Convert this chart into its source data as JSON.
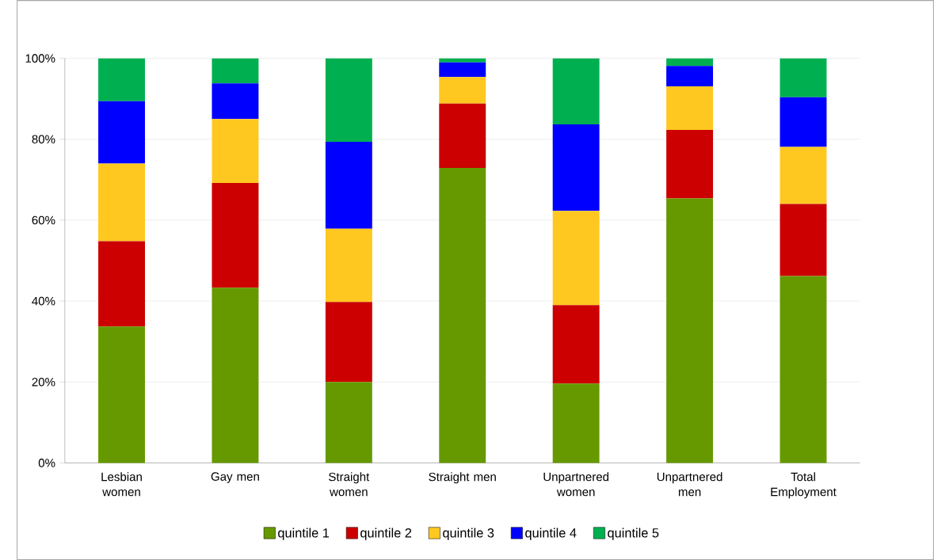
{
  "chart_data": {
    "type": "bar",
    "stacked": true,
    "categories": [
      "Lesbian women",
      "Gay men",
      "Straight women",
      "Straight men",
      "Unpartnered women",
      "Unpartnered men",
      "Total Employment"
    ],
    "series": [
      {
        "name": "quintile 1",
        "color": "#669900",
        "values": [
          33.7,
          43.3,
          20.0,
          72.9,
          19.6,
          65.4,
          46.2
        ]
      },
      {
        "name": "quintile 2",
        "color": "#cc0000",
        "values": [
          21.1,
          25.9,
          19.8,
          15.9,
          19.4,
          16.9,
          17.8
        ]
      },
      {
        "name": "quintile 3",
        "color": "#ffc820",
        "values": [
          19.2,
          15.8,
          18.1,
          6.6,
          23.3,
          10.8,
          14.1
        ]
      },
      {
        "name": "quintile 4",
        "color": "#0000ff",
        "values": [
          15.4,
          8.8,
          21.5,
          3.6,
          21.4,
          5.0,
          12.3
        ]
      },
      {
        "name": "quintile 5",
        "color": "#00b050",
        "values": [
          10.6,
          6.2,
          20.6,
          1.0,
          16.3,
          1.9,
          9.6
        ]
      }
    ],
    "ylim": [
      0,
      100
    ],
    "yticks": [
      {
        "value": 0,
        "label": "0%"
      },
      {
        "value": 20,
        "label": "20%"
      },
      {
        "value": 40,
        "label": "40%"
      },
      {
        "value": 60,
        "label": "60%"
      },
      {
        "value": 80,
        "label": "80%"
      },
      {
        "value": 100,
        "label": "100%"
      }
    ],
    "grid": "y",
    "legend": "bottom"
  }
}
